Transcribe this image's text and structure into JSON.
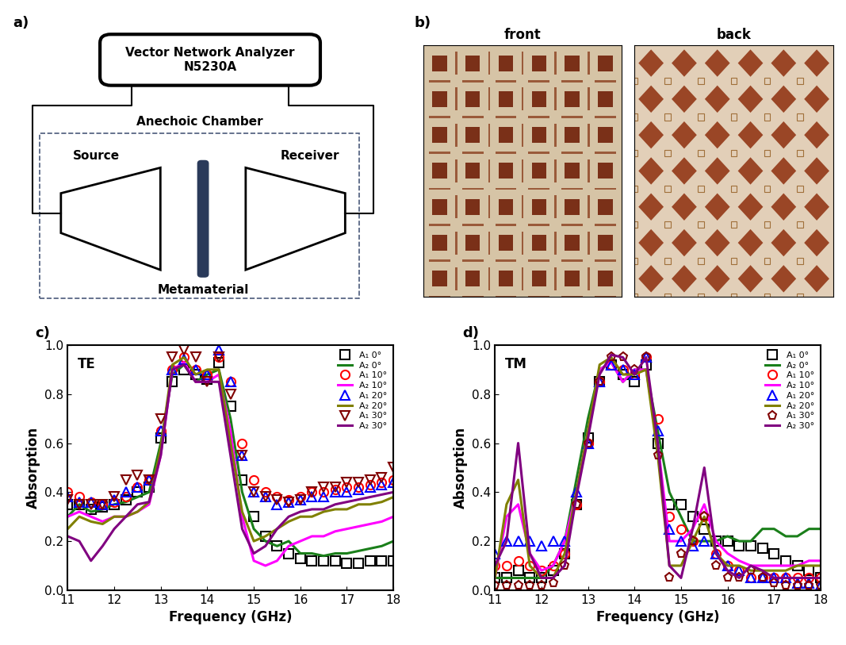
{
  "diagram": {
    "panel_label": "a)",
    "analyzer": [
      "Vector Network Analyzer",
      "N5230A"
    ],
    "chamber": "Anechoic Chamber",
    "source": "Source",
    "receiver": "Receiver",
    "sample": "Metamaterial"
  },
  "photos": {
    "panel_label": "b)",
    "labels": [
      "front",
      "back"
    ]
  },
  "chart_data": [
    {
      "type": "line",
      "panel_label": "c)",
      "annotations": [
        "TE"
      ],
      "x_label": "Frequency (GHz)",
      "y_label": "Absorption",
      "xlim": [
        11,
        18
      ],
      "ylim": [
        0,
        1
      ],
      "xticks": [
        11,
        12,
        13,
        14,
        15,
        16,
        17,
        18
      ],
      "yticks": [
        {
          "value": 0,
          "label": "0.0"
        },
        0.2,
        0.4,
        0.6,
        0.8,
        {
          "value": 1,
          "label": "1.0"
        }
      ],
      "legend": "upper right",
      "x": [
        11,
        11.25,
        11.5,
        11.75,
        12,
        12.25,
        12.5,
        12.75,
        13,
        13.25,
        13.5,
        13.75,
        14,
        14.25,
        14.5,
        14.75,
        15,
        15.25,
        15.5,
        15.75,
        16,
        16.25,
        16.5,
        16.75,
        17,
        17.25,
        17.5,
        17.75,
        18
      ],
      "series": [
        {
          "name": "A₁ 0°",
          "color": "#000000",
          "marker": "square",
          "line_style": "none",
          "values": [
            0.35,
            0.35,
            0.33,
            0.34,
            0.35,
            0.37,
            0.4,
            0.42,
            0.62,
            0.85,
            0.9,
            0.88,
            0.86,
            0.93,
            0.75,
            0.45,
            0.3,
            0.22,
            0.18,
            0.15,
            0.13,
            0.12,
            0.12,
            0.12,
            0.11,
            0.11,
            0.12,
            0.12,
            0.12
          ]
        },
        {
          "name": "A₂ 0°",
          "color": "#1a7f1a",
          "marker": "none",
          "line_style": "solid",
          "values": [
            0.3,
            0.35,
            0.32,
            0.33,
            0.35,
            0.36,
            0.38,
            0.4,
            0.6,
            0.88,
            0.92,
            0.85,
            0.88,
            0.9,
            0.7,
            0.4,
            0.25,
            0.2,
            0.18,
            0.2,
            0.15,
            0.15,
            0.14,
            0.15,
            0.15,
            0.16,
            0.17,
            0.18,
            0.2
          ]
        },
        {
          "name": "A₁ 10°",
          "color": "#ff0000",
          "marker": "circle",
          "line_style": "none",
          "values": [
            0.4,
            0.38,
            0.36,
            0.35,
            0.36,
            0.38,
            0.42,
            0.45,
            0.65,
            0.9,
            0.95,
            0.9,
            0.88,
            0.95,
            0.85,
            0.6,
            0.45,
            0.4,
            0.38,
            0.37,
            0.38,
            0.4,
            0.4,
            0.41,
            0.42,
            0.42,
            0.43,
            0.44,
            0.45
          ]
        },
        {
          "name": "A₂ 10°",
          "color": "#ff00ff",
          "marker": "none",
          "line_style": "solid",
          "values": [
            0.3,
            0.32,
            0.3,
            0.28,
            0.3,
            0.3,
            0.32,
            0.35,
            0.55,
            0.9,
            0.93,
            0.85,
            0.85,
            0.88,
            0.65,
            0.3,
            0.12,
            0.1,
            0.12,
            0.18,
            0.2,
            0.22,
            0.22,
            0.24,
            0.25,
            0.26,
            0.27,
            0.28,
            0.3
          ]
        },
        {
          "name": "A₁ 20°",
          "color": "#0000ff",
          "marker": "triangle_up",
          "line_style": "none",
          "values": [
            0.38,
            0.36,
            0.36,
            0.35,
            0.37,
            0.4,
            0.42,
            0.45,
            0.65,
            0.9,
            0.94,
            0.9,
            0.88,
            0.98,
            0.85,
            0.55,
            0.4,
            0.38,
            0.35,
            0.36,
            0.37,
            0.38,
            0.38,
            0.4,
            0.4,
            0.41,
            0.42,
            0.43,
            0.44
          ]
        },
        {
          "name": "A₂ 20°",
          "color": "#808000",
          "marker": "none",
          "line_style": "solid",
          "values": [
            0.25,
            0.3,
            0.28,
            0.27,
            0.3,
            0.3,
            0.32,
            0.36,
            0.58,
            0.92,
            0.95,
            0.88,
            0.9,
            0.9,
            0.6,
            0.32,
            0.2,
            0.22,
            0.25,
            0.28,
            0.3,
            0.3,
            0.32,
            0.33,
            0.33,
            0.35,
            0.35,
            0.36,
            0.38
          ]
        },
        {
          "name": "A₁ 30°",
          "color": "#800000",
          "marker": "triangle_down",
          "line_style": "none",
          "values": [
            0.37,
            0.35,
            0.35,
            0.35,
            0.38,
            0.45,
            0.47,
            0.45,
            0.7,
            0.95,
            0.98,
            0.95,
            0.85,
            0.95,
            0.8,
            0.55,
            0.4,
            0.38,
            0.37,
            0.36,
            0.37,
            0.4,
            0.42,
            0.42,
            0.44,
            0.44,
            0.45,
            0.46,
            0.5
          ]
        },
        {
          "name": "A₂ 30°",
          "color": "#800080",
          "marker": "none",
          "line_style": "solid",
          "values": [
            0.22,
            0.2,
            0.12,
            0.18,
            0.25,
            0.3,
            0.35,
            0.36,
            0.55,
            0.9,
            0.92,
            0.85,
            0.85,
            0.85,
            0.55,
            0.25,
            0.15,
            0.18,
            0.25,
            0.3,
            0.32,
            0.33,
            0.33,
            0.35,
            0.36,
            0.37,
            0.38,
            0.39,
            0.4
          ]
        }
      ]
    },
    {
      "type": "line",
      "panel_label": "d)",
      "annotations": [
        "TM"
      ],
      "x_label": "Frequency (GHz)",
      "y_label": "Absorption",
      "xlim": [
        11,
        18
      ],
      "ylim": [
        0,
        1
      ],
      "xticks": [
        11,
        12,
        13,
        14,
        15,
        16,
        17,
        18
      ],
      "yticks": [
        {
          "value": 0,
          "label": "0.0"
        },
        0.2,
        0.4,
        0.6,
        0.8,
        {
          "value": 1,
          "label": "1.0"
        }
      ],
      "legend": "upper right",
      "x": [
        11,
        11.25,
        11.5,
        11.75,
        12,
        12.25,
        12.5,
        12.75,
        13,
        13.25,
        13.5,
        13.75,
        14,
        14.25,
        14.5,
        14.75,
        15,
        15.25,
        15.5,
        15.75,
        16,
        16.25,
        16.5,
        16.75,
        17,
        17.25,
        17.5,
        17.75,
        18
      ],
      "series": [
        {
          "name": "A₁ 0°",
          "color": "#000000",
          "marker": "square",
          "line_style": "none",
          "values": [
            0.05,
            0.05,
            0.08,
            0.05,
            0.05,
            0.08,
            0.15,
            0.35,
            0.62,
            0.85,
            0.92,
            0.88,
            0.85,
            0.92,
            0.6,
            0.35,
            0.35,
            0.3,
            0.25,
            0.2,
            0.2,
            0.18,
            0.18,
            0.17,
            0.15,
            0.12,
            0.1,
            0.08,
            0.05
          ]
        },
        {
          "name": "A₂ 0°",
          "color": "#1a7f1a",
          "marker": "none",
          "line_style": "solid",
          "values": [
            0.05,
            0.05,
            0.05,
            0.05,
            0.05,
            0.1,
            0.2,
            0.45,
            0.7,
            0.9,
            0.93,
            0.85,
            0.9,
            0.9,
            0.65,
            0.4,
            0.3,
            0.2,
            0.2,
            0.2,
            0.22,
            0.2,
            0.2,
            0.25,
            0.25,
            0.22,
            0.22,
            0.25,
            0.25
          ]
        },
        {
          "name": "A₁ 10°",
          "color": "#ff0000",
          "marker": "circle",
          "line_style": "none",
          "values": [
            0.1,
            0.1,
            0.12,
            0.1,
            0.08,
            0.1,
            0.15,
            0.35,
            0.6,
            0.85,
            0.92,
            0.9,
            0.88,
            0.95,
            0.7,
            0.3,
            0.25,
            0.2,
            0.3,
            0.15,
            0.1,
            0.08,
            0.05,
            0.05,
            0.05,
            0.05,
            0.05,
            0.05,
            0.05
          ]
        },
        {
          "name": "A₂ 10°",
          "color": "#ff00ff",
          "marker": "none",
          "line_style": "solid",
          "values": [
            0.05,
            0.3,
            0.35,
            0.15,
            0.08,
            0.1,
            0.2,
            0.4,
            0.65,
            0.9,
            0.93,
            0.85,
            0.9,
            0.9,
            0.6,
            0.2,
            0.2,
            0.25,
            0.35,
            0.2,
            0.15,
            0.12,
            0.1,
            0.1,
            0.1,
            0.1,
            0.1,
            0.12,
            0.12
          ]
        },
        {
          "name": "A₁ 20°",
          "color": "#0000ff",
          "marker": "triangle_up",
          "line_style": "none",
          "values": [
            0.15,
            0.2,
            0.2,
            0.2,
            0.18,
            0.2,
            0.2,
            0.4,
            0.6,
            0.85,
            0.92,
            0.9,
            0.88,
            0.95,
            0.65,
            0.25,
            0.2,
            0.18,
            0.2,
            0.15,
            0.1,
            0.08,
            0.05,
            0.05,
            0.05,
            0.05,
            0.03,
            0.03,
            0.02
          ]
        },
        {
          "name": "A₂ 20°",
          "color": "#808000",
          "marker": "none",
          "line_style": "solid",
          "values": [
            0.05,
            0.35,
            0.45,
            0.1,
            0.05,
            0.05,
            0.15,
            0.4,
            0.65,
            0.92,
            0.95,
            0.88,
            0.88,
            0.9,
            0.55,
            0.1,
            0.1,
            0.2,
            0.3,
            0.15,
            0.1,
            0.1,
            0.08,
            0.08,
            0.08,
            0.08,
            0.1,
            0.1,
            0.1
          ]
        },
        {
          "name": "A₁ 30°",
          "color": "#800000",
          "marker": "pentagon",
          "line_style": "none",
          "values": [
            0.02,
            0.02,
            0.02,
            0.02,
            0.02,
            0.03,
            0.1,
            0.35,
            0.6,
            0.85,
            0.95,
            0.95,
            0.9,
            0.95,
            0.55,
            0.05,
            0.15,
            0.2,
            0.3,
            0.1,
            0.05,
            0.05,
            0.08,
            0.05,
            0.03,
            0.02,
            0.02,
            0.02,
            0.02
          ]
        },
        {
          "name": "A₂ 30°",
          "color": "#800080",
          "marker": "none",
          "line_style": "solid",
          "values": [
            0.1,
            0.2,
            0.6,
            0.15,
            0.05,
            0.05,
            0.1,
            0.38,
            0.62,
            0.88,
            0.96,
            0.95,
            0.88,
            0.95,
            0.6,
            0.1,
            0.05,
            0.25,
            0.5,
            0.15,
            0.08,
            0.05,
            0.1,
            0.08,
            0.05,
            0.05,
            0.05,
            0.05,
            0.05
          ]
        }
      ]
    }
  ]
}
